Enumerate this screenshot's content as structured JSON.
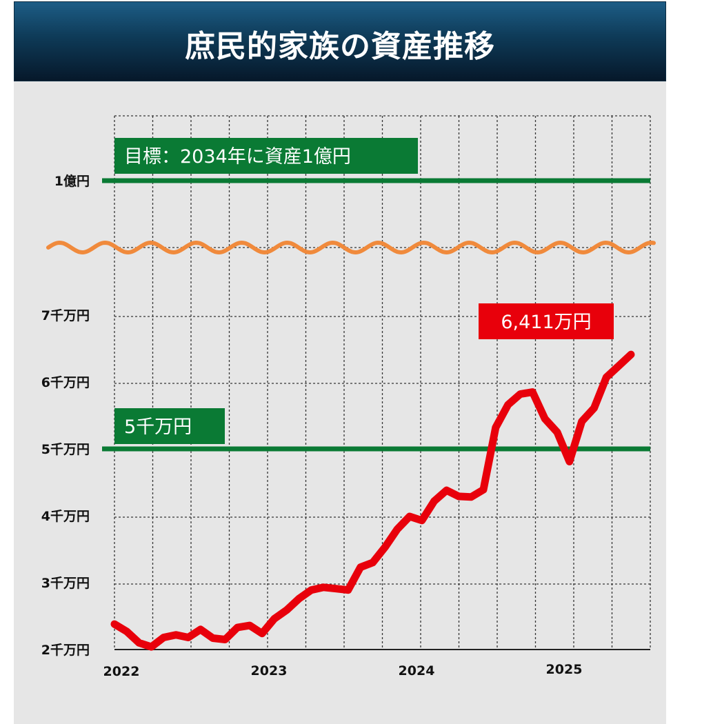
{
  "header": {
    "title": "庶民的家族の資産推移"
  },
  "colors": {
    "header_top": "#1d5d86",
    "header_bottom": "#06182a",
    "panel": "#e6e6e6",
    "series": "#e8000b",
    "target_line": "#0a7a34",
    "wave": "#f08a3c",
    "grid": "#333333"
  },
  "chart_data": {
    "type": "line",
    "title": "庶民的家族の資産推移",
    "xlabel": "",
    "ylabel": "",
    "broken_axis": true,
    "y_ticks": [
      {
        "value": 2000,
        "label": "2千万円"
      },
      {
        "value": 3000,
        "label": "3千万円"
      },
      {
        "value": 4000,
        "label": "4千万円"
      },
      {
        "value": 5000,
        "label": "5千万円"
      },
      {
        "value": 6000,
        "label": "6千万円"
      },
      {
        "value": 7000,
        "label": "7千万円"
      },
      {
        "value": 10000,
        "label": "1億円"
      }
    ],
    "x_ticks": [
      {
        "value": 2022.0,
        "label": "2022"
      },
      {
        "value": 2023.0,
        "label": "2023"
      },
      {
        "value": 2024.0,
        "label": "2024"
      },
      {
        "value": 2025.0,
        "label": "2025"
      }
    ],
    "xlim": [
      2022.0,
      2025.75
    ],
    "grid": true,
    "series": [
      {
        "values": [
          {
            "x": 2022.0,
            "y": 2380
          },
          {
            "x": 2022.083,
            "y": 2270
          },
          {
            "x": 2022.167,
            "y": 2100
          },
          {
            "x": 2022.25,
            "y": 2040
          },
          {
            "x": 2022.333,
            "y": 2180
          },
          {
            "x": 2022.417,
            "y": 2220
          },
          {
            "x": 2022.5,
            "y": 2180
          },
          {
            "x": 2022.583,
            "y": 2300
          },
          {
            "x": 2022.667,
            "y": 2170
          },
          {
            "x": 2022.75,
            "y": 2150
          },
          {
            "x": 2022.833,
            "y": 2330
          },
          {
            "x": 2022.917,
            "y": 2360
          },
          {
            "x": 2023.0,
            "y": 2240
          },
          {
            "x": 2023.083,
            "y": 2460
          },
          {
            "x": 2023.167,
            "y": 2590
          },
          {
            "x": 2023.25,
            "y": 2760
          },
          {
            "x": 2023.333,
            "y": 2890
          },
          {
            "x": 2023.417,
            "y": 2930
          },
          {
            "x": 2023.5,
            "y": 2910
          },
          {
            "x": 2023.583,
            "y": 2890
          },
          {
            "x": 2023.667,
            "y": 3230
          },
          {
            "x": 2023.75,
            "y": 3300
          },
          {
            "x": 2023.833,
            "y": 3530
          },
          {
            "x": 2023.917,
            "y": 3800
          },
          {
            "x": 2024.0,
            "y": 3990
          },
          {
            "x": 2024.083,
            "y": 3930
          },
          {
            "x": 2024.167,
            "y": 4220
          },
          {
            "x": 2024.25,
            "y": 4380
          },
          {
            "x": 2024.333,
            "y": 4290
          },
          {
            "x": 2024.417,
            "y": 4280
          },
          {
            "x": 2024.5,
            "y": 4390
          },
          {
            "x": 2024.583,
            "y": 5320
          },
          {
            "x": 2024.667,
            "y": 5660
          },
          {
            "x": 2024.75,
            "y": 5820
          },
          {
            "x": 2024.833,
            "y": 5850
          },
          {
            "x": 2024.917,
            "y": 5450
          },
          {
            "x": 2025.0,
            "y": 5250
          },
          {
            "x": 2025.083,
            "y": 4810
          },
          {
            "x": 2025.167,
            "y": 5410
          },
          {
            "x": 2025.25,
            "y": 5610
          },
          {
            "x": 2025.333,
            "y": 6070
          },
          {
            "x": 2025.417,
            "y": 6240
          },
          {
            "x": 2025.5,
            "y": 6411
          }
        ]
      }
    ],
    "reference_lines": [
      {
        "value": 10000,
        "label": "目標：2034年に資産1億円"
      },
      {
        "value": 5000,
        "label": "5千万円"
      }
    ],
    "annotations": [
      {
        "label": "6,411万円"
      }
    ]
  }
}
